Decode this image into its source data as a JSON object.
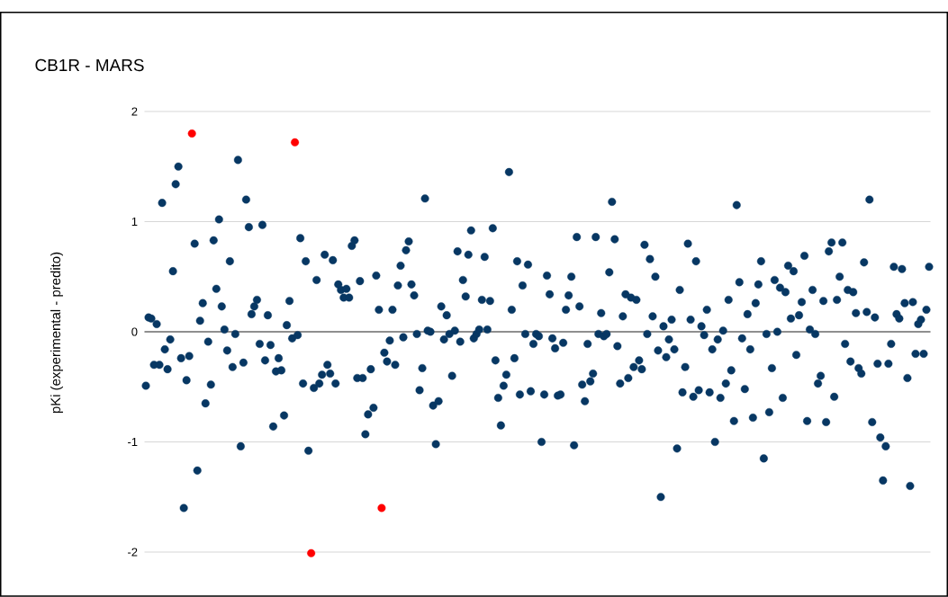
{
  "chart_data": {
    "type": "scatter",
    "title": "CB1R - MARS",
    "ylabel": "pKi (experimental - predito)",
    "categories": [
      null,
      null,
      null,
      null,
      null,
      null,
      null,
      null,
      null,
      null,
      null,
      null,
      null,
      null,
      null,
      null,
      null,
      null,
      null,
      null,
      null,
      null,
      null,
      null,
      null,
      null,
      null,
      null,
      null,
      null,
      null,
      null,
      null,
      null,
      null,
      null,
      null,
      null,
      null,
      null,
      null,
      null,
      null,
      null,
      null,
      null,
      null,
      null,
      null,
      null,
      null,
      null,
      null,
      null,
      null,
      null,
      null,
      null,
      null,
      null,
      null,
      null,
      null,
      null,
      null,
      null,
      null,
      null,
      null,
      null,
      null,
      null,
      null,
      null,
      null,
      null,
      null,
      null,
      null,
      null,
      null,
      null,
      null,
      null,
      null,
      null,
      null,
      null,
      null,
      null,
      null,
      null,
      null,
      null,
      null,
      null,
      null,
      null,
      null,
      null,
      null,
      null,
      null,
      null,
      null,
      null,
      null,
      null,
      null,
      null,
      null,
      null,
      null,
      null,
      null,
      null,
      null,
      null,
      null,
      null,
      null,
      null,
      null,
      null,
      null,
      null,
      null,
      null,
      null,
      null,
      null,
      null,
      null,
      null,
      null,
      null,
      null,
      null,
      null,
      null,
      null,
      null,
      null,
      null,
      null,
      null,
      null,
      null,
      null,
      null,
      null,
      null,
      null,
      null,
      null,
      null,
      null,
      null,
      null,
      null,
      null,
      null,
      null,
      null,
      null,
      null,
      null,
      null,
      null,
      null,
      null,
      null,
      null,
      null,
      null,
      null,
      null,
      null,
      null,
      null,
      null,
      null,
      null,
      null,
      null,
      null,
      null,
      null,
      null,
      null,
      null,
      null,
      null,
      null,
      null,
      null,
      null,
      null,
      null,
      null,
      null,
      null,
      null,
      null,
      null,
      null,
      null,
      null,
      null,
      null,
      null,
      null,
      null,
      null,
      null,
      null,
      null,
      null,
      null,
      null,
      null,
      null,
      null,
      null,
      null,
      null,
      null,
      null,
      null,
      null,
      null,
      null,
      null,
      null,
      null,
      null,
      null,
      null,
      null,
      null,
      null,
      null,
      null,
      null,
      null,
      null,
      null,
      null,
      null,
      null,
      null,
      null,
      null,
      null,
      null,
      null,
      null,
      null,
      null,
      null,
      null,
      null,
      null,
      null,
      null,
      null,
      null,
      null,
      null,
      null,
      null,
      null,
      null,
      null,
      null,
      null,
      null,
      null,
      null,
      null,
      null,
      null,
      null,
      null,
      null,
      null,
      null,
      null,
      null,
      null
    ],
    "series": [
      {
        "color": "#073763",
        "values": [
          -0.49,
          0.13,
          0.12,
          -0.3,
          0.07,
          -0.3,
          1.17,
          -0.16,
          -0.34,
          -0.07,
          0.55,
          1.34,
          1.5,
          -0.24,
          -1.6,
          -0.44,
          -0.22,
          null,
          0.8,
          -1.26,
          0.1,
          0.26,
          -0.65,
          -0.09,
          -0.48,
          0.83,
          0.39,
          1.02,
          0.23,
          0.02,
          -0.17,
          0.64,
          -0.32,
          -0.02,
          1.56,
          -1.04,
          -0.28,
          1.2,
          0.95,
          0.16,
          0.23,
          0.29,
          -0.11,
          0.97,
          -0.26,
          0.15,
          -0.12,
          -0.86,
          -0.36,
          -0.24,
          -0.35,
          -0.76,
          0.06,
          0.28,
          -0.06,
          null,
          -0.03,
          0.85,
          -0.47,
          0.64,
          -1.08,
          null,
          -0.51,
          0.47,
          -0.47,
          -0.39,
          0.7,
          -0.3,
          -0.38,
          0.65,
          -0.47,
          0.43,
          0.38,
          0.31,
          0.39,
          0.31,
          0.78,
          0.83,
          -0.42,
          0.46,
          -0.42,
          -0.93,
          -0.75,
          -0.34,
          -0.69,
          0.51,
          0.2,
          null,
          -0.19,
          -0.27,
          -0.08,
          0.2,
          -0.3,
          0.42,
          0.6,
          -0.05,
          0.74,
          0.82,
          0.43,
          0.33,
          -0.02,
          -0.53,
          -0.33,
          1.21,
          0.01,
          0.0,
          -0.67,
          -1.02,
          -0.63,
          0.23,
          -0.07,
          0.15,
          -0.02,
          -0.4,
          0.01,
          0.73,
          -0.09,
          0.47,
          0.32,
          0.7,
          0.92,
          -0.06,
          -0.02,
          0.02,
          0.29,
          0.68,
          0.02,
          0.28,
          0.94,
          -0.26,
          -0.6,
          -0.85,
          -0.49,
          -0.39,
          1.45,
          0.2,
          -0.24,
          0.64,
          -0.57,
          0.42,
          -0.02,
          0.61,
          -0.54,
          -0.11,
          -0.02,
          -0.04,
          -1.0,
          -0.57,
          0.51,
          0.34,
          -0.06,
          -0.15,
          -0.58,
          -0.57,
          -0.1,
          0.2,
          0.33,
          0.5,
          -1.03,
          0.86,
          0.23,
          -0.48,
          -0.63,
          -0.11,
          -0.45,
          -0.38,
          0.86,
          -0.02,
          0.17,
          -0.04,
          -0.02,
          0.54,
          1.18,
          0.84,
          -0.13,
          -0.47,
          0.14,
          0.34,
          -0.42,
          0.31,
          -0.32,
          0.29,
          -0.26,
          -0.34,
          0.79,
          -0.02,
          0.66,
          0.14,
          0.5,
          -0.17,
          -1.5,
          0.05,
          -0.23,
          -0.07,
          0.11,
          -0.16,
          -1.06,
          0.38,
          -0.55,
          -0.32,
          0.8,
          0.11,
          -0.59,
          0.64,
          -0.53,
          0.05,
          -0.03,
          0.2,
          -0.55,
          -0.16,
          -1.0,
          -0.07,
          -0.6,
          0.01,
          -0.47,
          0.29,
          -0.35,
          -0.81,
          1.15,
          0.45,
          -0.06,
          -0.52,
          0.16,
          -0.16,
          -0.78,
          0.26,
          0.43,
          0.64,
          -1.15,
          -0.02,
          -0.73,
          -0.33,
          0.47,
          0.0,
          0.4,
          -0.6,
          0.36,
          0.6,
          0.12,
          0.55,
          -0.21,
          0.15,
          0.27,
          0.69,
          -0.81,
          0.02,
          0.38,
          -0.02,
          -0.47,
          -0.4,
          0.28,
          -0.82,
          0.73,
          0.81,
          -0.59,
          0.29,
          0.5,
          0.81,
          -0.11,
          0.38,
          -0.27,
          0.36,
          0.17,
          -0.33,
          -0.38,
          0.63,
          0.18,
          1.2,
          -0.82,
          0.13,
          -0.29,
          -0.96,
          -1.35,
          -1.04,
          -0.29,
          -0.11,
          0.59,
          0.16,
          0.12,
          0.57,
          0.26,
          -0.42,
          -1.4,
          0.27,
          -0.2,
          0.07,
          0.11,
          -0.2,
          0.2,
          0.59
        ]
      },
      {
        "color": "#ff0000",
        "values": [
          null,
          null,
          null,
          null,
          null,
          null,
          null,
          null,
          null,
          null,
          null,
          null,
          null,
          null,
          null,
          null,
          null,
          1.8,
          null,
          null,
          null,
          null,
          null,
          null,
          null,
          null,
          null,
          null,
          null,
          null,
          null,
          null,
          null,
          null,
          null,
          null,
          null,
          null,
          null,
          null,
          null,
          null,
          null,
          null,
          null,
          null,
          null,
          null,
          null,
          null,
          null,
          null,
          null,
          null,
          null,
          1.72,
          null,
          null,
          null,
          null,
          null,
          -2.01,
          null,
          null,
          null,
          null,
          null,
          null,
          null,
          null,
          null,
          null,
          null,
          null,
          null,
          null,
          null,
          null,
          null,
          null,
          null,
          null,
          null,
          null,
          null,
          null,
          null,
          -1.6,
          null,
          null,
          null,
          null,
          null,
          null,
          null,
          null,
          null,
          null,
          null,
          null,
          null,
          null,
          null,
          null,
          null,
          null,
          null,
          null,
          null,
          null,
          null,
          null,
          null,
          null,
          null,
          null,
          null,
          null,
          null,
          null,
          null,
          null,
          null,
          null,
          null,
          null,
          null,
          null,
          null,
          null,
          null,
          null,
          null,
          null,
          null,
          null,
          null,
          null,
          null,
          null,
          null,
          null,
          null,
          null,
          null,
          null,
          null,
          null,
          null,
          null,
          null,
          null,
          null,
          null,
          null,
          null,
          null,
          null,
          null,
          null,
          null,
          null,
          null,
          null,
          null,
          null,
          null,
          null,
          null,
          null,
          null,
          null,
          null,
          null,
          null,
          null,
          null,
          null,
          null,
          null,
          null,
          null,
          null,
          null,
          null,
          null,
          null,
          null,
          null,
          null,
          null,
          null,
          null,
          null,
          null,
          null,
          null,
          null,
          null,
          null,
          null,
          null,
          null,
          null,
          null,
          null,
          null,
          null,
          null,
          null,
          null,
          null,
          null,
          null,
          null,
          null,
          null,
          null,
          null,
          null,
          null,
          null,
          null,
          null,
          null,
          null,
          null,
          null,
          null,
          null,
          null,
          null,
          null,
          null,
          null,
          null,
          null,
          null,
          null,
          null,
          null,
          null,
          null,
          null,
          null,
          null,
          null,
          null,
          null,
          null,
          null,
          null,
          null,
          null,
          null,
          null,
          null,
          null,
          null,
          null,
          null,
          null,
          null,
          null,
          null,
          null,
          null,
          null,
          null,
          null,
          null,
          null,
          null,
          null,
          null,
          null,
          null,
          null,
          null,
          null,
          null,
          null,
          null,
          null,
          null,
          null,
          null,
          null,
          null,
          null
        ]
      }
    ],
    "ylim": [
      -2.4,
      2.9
    ],
    "yticks": [
      -2,
      -1,
      0,
      1,
      2
    ],
    "grid": "y",
    "legend": false,
    "marker": "circle",
    "ref_lines": [
      {
        "axis": "y",
        "value": 0,
        "color": "#333333"
      }
    ]
  }
}
